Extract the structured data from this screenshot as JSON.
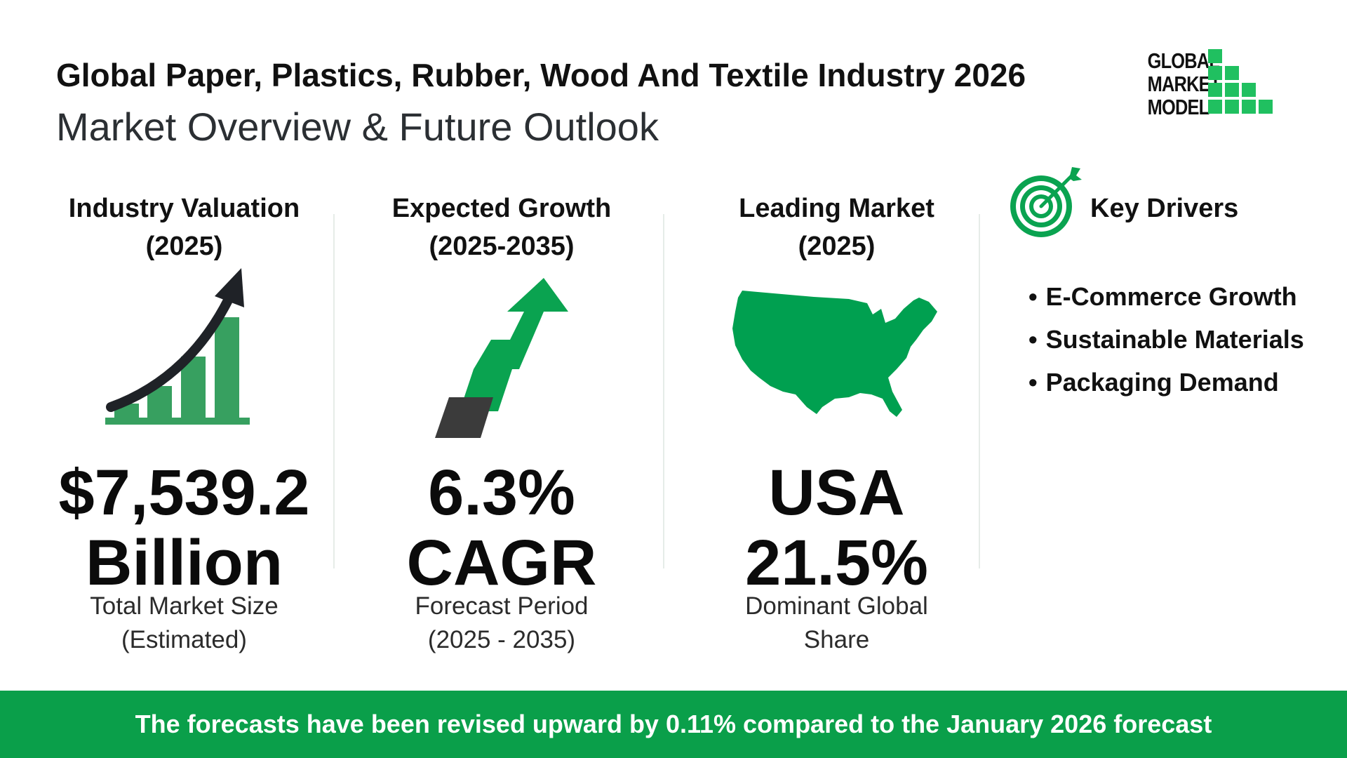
{
  "header": {
    "title": "Global Paper, Plastics, Rubber, Wood And Textile Industry 2026",
    "subtitle": "Market Overview & Future Outlook"
  },
  "logo": {
    "line1": "GLOBAL",
    "line2": "MARKET",
    "line3": "MODEL",
    "color": "#20c060"
  },
  "valuation": {
    "heading_line1": "Industry Valuation",
    "heading_line2": "(2025)",
    "value_line1": "$7,539.2",
    "value_line2": "Billion",
    "caption_line1": "Total Market Size",
    "caption_line2": "(Estimated)",
    "icon": "growth-chart-icon"
  },
  "growth": {
    "heading_line1": "Expected Growth",
    "heading_line2": "(2025-2035)",
    "value_line1": "6.3%",
    "value_line2": "CAGR",
    "caption_line1": "Forecast Period",
    "caption_line2": "(2025 - 2035)",
    "icon": "up-arrow-icon"
  },
  "leading": {
    "heading_line1": "Leading Market",
    "heading_line2": "(2025)",
    "value_line1": "USA",
    "value_line2": "21.5%",
    "caption_line1": "Dominant Global",
    "caption_line2": "Share",
    "icon": "usa-map-icon"
  },
  "drivers": {
    "heading": "Key Drivers",
    "icon": "target-icon",
    "items": [
      "E-Commerce Growth",
      "Sustainable Materials",
      "Packaging Demand"
    ]
  },
  "banner": {
    "text": "The forecasts have been revised upward by 0.11% compared to the January 2026 forecast"
  },
  "colors": {
    "accent": "#0aa350",
    "banner": "#0a9f4a",
    "dark": "#1f2227"
  }
}
